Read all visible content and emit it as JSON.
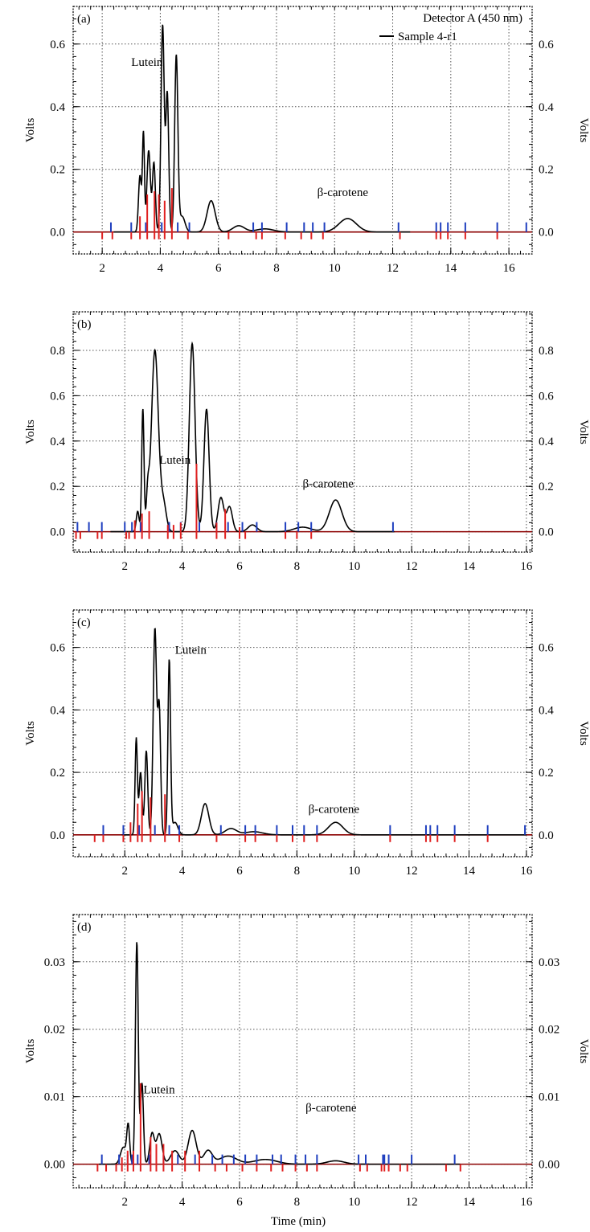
{
  "legend": {
    "detector_label": "Detector A (450 nm)",
    "series_label": "Sample 4-r1"
  },
  "x_axis_title": "Time (min)",
  "colors": {
    "trace": "#000000",
    "baseline": "#8b0000",
    "start_marks": "#1f3fbf",
    "end_marks": "#e02020",
    "grid": "#555555"
  },
  "chart_data": [
    {
      "type": "line",
      "panel": "(a)",
      "xlim": [
        1,
        16.8
      ],
      "ylim": [
        -0.07,
        0.72
      ],
      "x_ticks": [
        2,
        4,
        6,
        8,
        10,
        12,
        14,
        16
      ],
      "x_tick_labels": [
        "2",
        "4",
        "6",
        "8",
        "10",
        "12",
        "14",
        "16"
      ],
      "y_ticks": [
        0.0,
        0.2,
        0.4,
        0.6
      ],
      "y_tick_labels": [
        "0.0",
        "0.2",
        "0.4",
        "0.6"
      ],
      "ylabel_left": "Volts",
      "ylabel_right": "Volts",
      "grid": true,
      "legend_position": "top-right",
      "annotations": [
        {
          "text": "Lutein",
          "x": 3.0,
          "y": 0.53
        },
        {
          "text": "β-carotene",
          "x": 9.4,
          "y": 0.115
        }
      ],
      "trace_range": [
        2.4,
        12.6
      ],
      "peaks": [
        {
          "t": 3.3,
          "h": 0.18,
          "w": 0.05
        },
        {
          "t": 3.42,
          "h": 0.31,
          "w": 0.035
        },
        {
          "t": 3.6,
          "h": 0.26,
          "w": 0.06
        },
        {
          "t": 3.78,
          "h": 0.22,
          "w": 0.05
        },
        {
          "t": 4.08,
          "h": 0.66,
          "w": 0.055
        },
        {
          "t": 4.24,
          "h": 0.44,
          "w": 0.05
        },
        {
          "t": 4.55,
          "h": 0.56,
          "w": 0.055
        },
        {
          "t": 4.75,
          "h": 0.05,
          "w": 0.1
        },
        {
          "t": 5.75,
          "h": 0.1,
          "w": 0.14
        },
        {
          "t": 6.7,
          "h": 0.02,
          "w": 0.2
        },
        {
          "t": 7.6,
          "h": 0.01,
          "w": 0.3
        },
        {
          "t": 10.45,
          "h": 0.043,
          "w": 0.3
        }
      ],
      "marks_start": [
        2.3,
        3.0,
        3.5,
        4.05,
        4.6,
        5.0,
        7.2,
        7.5,
        8.35,
        8.95,
        9.25,
        9.65,
        12.2,
        13.5,
        13.65,
        13.9,
        14.5,
        15.6,
        16.6
      ],
      "marks_end": [
        2.0,
        2.35,
        3.0,
        3.3,
        3.55,
        3.8,
        3.95,
        4.15,
        4.4,
        4.95,
        6.35,
        7.3,
        7.5,
        8.3,
        8.85,
        9.2,
        9.6,
        12.25,
        13.5,
        13.65,
        13.9,
        14.5,
        15.6
      ],
      "end_heights": [
        0,
        0,
        0,
        0.05,
        0.12,
        0.13,
        0.12,
        0.1,
        0.14,
        0,
        0,
        0,
        0,
        0,
        0,
        0,
        0,
        0,
        0,
        0,
        0,
        0,
        0
      ]
    },
    {
      "type": "line",
      "panel": "(b)",
      "xlim": [
        0.2,
        16.2
      ],
      "ylim": [
        -0.09,
        0.97
      ],
      "x_ticks": [
        2,
        4,
        6,
        8,
        10,
        12,
        14,
        16
      ],
      "x_tick_labels": [
        "2",
        "4",
        "6",
        "8",
        "10",
        "12",
        "14",
        "16"
      ],
      "y_ticks": [
        0.0,
        0.2,
        0.4,
        0.6,
        0.8
      ],
      "y_tick_labels": [
        "0.0",
        "0.2",
        "0.4",
        "0.6",
        "0.8"
      ],
      "ylabel_left": "Volts",
      "ylabel_right": "Volts",
      "grid": true,
      "annotations": [
        {
          "text": "Lutein",
          "x": 3.2,
          "y": 0.3
        },
        {
          "text": "β-carotene",
          "x": 8.2,
          "y": 0.195
        }
      ],
      "trace_range": [
        1.5,
        11.4
      ],
      "peaks": [
        {
          "t": 2.45,
          "h": 0.09,
          "w": 0.05
        },
        {
          "t": 2.63,
          "h": 0.54,
          "w": 0.04
        },
        {
          "t": 2.8,
          "h": 0.15,
          "w": 0.05
        },
        {
          "t": 3.05,
          "h": 0.8,
          "w": 0.12
        },
        {
          "t": 3.35,
          "h": 0.12,
          "w": 0.1
        },
        {
          "t": 4.35,
          "h": 0.83,
          "w": 0.1
        },
        {
          "t": 4.85,
          "h": 0.54,
          "w": 0.09
        },
        {
          "t": 5.35,
          "h": 0.15,
          "w": 0.1
        },
        {
          "t": 5.65,
          "h": 0.11,
          "w": 0.1
        },
        {
          "t": 6.45,
          "h": 0.03,
          "w": 0.15
        },
        {
          "t": 8.2,
          "h": 0.02,
          "w": 0.3
        },
        {
          "t": 9.35,
          "h": 0.14,
          "w": 0.22
        }
      ],
      "marks_start": [
        0.35,
        0.75,
        1.2,
        2.0,
        2.25,
        2.55,
        3.55,
        3.95,
        4.6,
        5.2,
        5.6,
        6.1,
        6.6,
        7.6,
        8.05,
        8.5,
        11.35
      ],
      "marks_end": [
        0.3,
        0.45,
        1.05,
        1.2,
        2.05,
        2.15,
        2.35,
        2.6,
        2.85,
        3.5,
        3.7,
        3.95,
        4.5,
        5.2,
        5.5,
        6.0,
        6.2,
        7.6,
        8.0,
        8.5
      ],
      "end_heights": [
        0,
        0,
        0,
        0,
        0,
        0,
        0.05,
        0.08,
        0.09,
        0.03,
        0.03,
        0.04,
        0.3,
        0.04,
        0.1,
        0.02,
        0,
        0,
        0,
        0
      ]
    },
    {
      "type": "line",
      "panel": "(c)",
      "xlim": [
        0.2,
        16.2
      ],
      "ylim": [
        -0.07,
        0.72
      ],
      "x_ticks": [
        2,
        4,
        6,
        8,
        10,
        12,
        14,
        16
      ],
      "x_tick_labels": [
        "2",
        "4",
        "6",
        "8",
        "10",
        "12",
        "14",
        "16"
      ],
      "y_ticks": [
        0.0,
        0.2,
        0.4,
        0.6
      ],
      "y_tick_labels": [
        "0.0",
        "0.2",
        "0.4",
        "0.6"
      ],
      "ylabel_left": "Volts",
      "ylabel_right": "Volts",
      "grid": true,
      "annotations": [
        {
          "text": "Lutein",
          "x": 3.75,
          "y": 0.58
        },
        {
          "text": "β-carotene",
          "x": 8.4,
          "y": 0.07
        }
      ],
      "trace_range": [
        1.9,
        16.0
      ],
      "peaks": [
        {
          "t": 2.4,
          "h": 0.31,
          "w": 0.04
        },
        {
          "t": 2.55,
          "h": 0.2,
          "w": 0.05
        },
        {
          "t": 2.75,
          "h": 0.27,
          "w": 0.05
        },
        {
          "t": 3.05,
          "h": 0.66,
          "w": 0.06
        },
        {
          "t": 3.2,
          "h": 0.4,
          "w": 0.05
        },
        {
          "t": 3.55,
          "h": 0.56,
          "w": 0.045
        },
        {
          "t": 3.75,
          "h": 0.04,
          "w": 0.1
        },
        {
          "t": 4.8,
          "h": 0.1,
          "w": 0.13
        },
        {
          "t": 5.7,
          "h": 0.02,
          "w": 0.2
        },
        {
          "t": 6.5,
          "h": 0.01,
          "w": 0.3
        },
        {
          "t": 9.35,
          "h": 0.04,
          "w": 0.25
        }
      ],
      "marks_start": [
        1.25,
        1.95,
        2.5,
        3.05,
        3.55,
        3.9,
        5.35,
        6.2,
        6.55,
        7.3,
        7.85,
        8.25,
        8.7,
        11.25,
        12.5,
        12.65,
        12.9,
        13.5,
        14.65,
        15.95
      ],
      "marks_end": [
        0.95,
        1.25,
        1.95,
        2.2,
        2.45,
        2.6,
        2.9,
        3.4,
        3.9,
        5.2,
        6.2,
        6.55,
        7.3,
        7.85,
        8.25,
        8.7,
        11.25,
        12.5,
        12.65,
        12.9,
        13.5,
        14.65
      ],
      "end_heights": [
        0,
        0,
        0,
        0.04,
        0.1,
        0.14,
        0.12,
        0.13,
        0,
        0,
        0,
        0,
        0,
        0,
        0,
        0,
        0,
        0,
        0,
        0,
        0,
        0
      ]
    },
    {
      "type": "line",
      "panel": "(d)",
      "xlim": [
        0.2,
        16.2
      ],
      "ylim": [
        -0.0035,
        0.037
      ],
      "x_ticks": [
        2,
        4,
        6,
        8,
        10,
        12,
        14,
        16
      ],
      "x_tick_labels": [
        "2",
        "4",
        "6",
        "8",
        "10",
        "12",
        "14",
        "16"
      ],
      "y_ticks": [
        0.0,
        0.01,
        0.02,
        0.03
      ],
      "y_tick_labels": [
        "0.00",
        "0.01",
        "0.02",
        "0.03"
      ],
      "ylabel_left": "Volts",
      "ylabel_right": "Volts",
      "grid": true,
      "annotations": [
        {
          "text": "Lutein",
          "x": 2.65,
          "y": 0.0105
        },
        {
          "text": "β-carotene",
          "x": 8.3,
          "y": 0.0078
        }
      ],
      "trace_range": [
        1.1,
        13.7
      ],
      "peaks": [
        {
          "t": 1.95,
          "h": 0.0025,
          "w": 0.1
        },
        {
          "t": 2.12,
          "h": 0.0055,
          "w": 0.05
        },
        {
          "t": 2.42,
          "h": 0.033,
          "w": 0.05
        },
        {
          "t": 2.6,
          "h": 0.012,
          "w": 0.05
        },
        {
          "t": 2.95,
          "h": 0.0045,
          "w": 0.08
        },
        {
          "t": 3.2,
          "h": 0.0045,
          "w": 0.1
        },
        {
          "t": 3.75,
          "h": 0.002,
          "w": 0.15
        },
        {
          "t": 4.35,
          "h": 0.005,
          "w": 0.14
        },
        {
          "t": 4.9,
          "h": 0.002,
          "w": 0.15
        },
        {
          "t": 5.6,
          "h": 0.0012,
          "w": 0.3
        },
        {
          "t": 6.9,
          "h": 0.0007,
          "w": 0.4
        },
        {
          "t": 9.35,
          "h": 0.0005,
          "w": 0.3
        }
      ],
      "marks_start": [
        1.2,
        1.8,
        2.1,
        2.25,
        2.45,
        2.85,
        3.35,
        3.85,
        4.45,
        5.05,
        5.4,
        5.8,
        6.2,
        6.6,
        7.15,
        7.45,
        7.95,
        8.3,
        8.7,
        10.15,
        10.4,
        11.0,
        11.05,
        11.2,
        12.0,
        13.5
      ],
      "marks_end": [
        1.05,
        1.35,
        1.7,
        1.9,
        2.1,
        2.3,
        2.55,
        2.9,
        3.1,
        3.35,
        3.65,
        4.1,
        4.6,
        5.15,
        5.55,
        6.1,
        6.6,
        7.1,
        7.5,
        7.95,
        8.35,
        8.7,
        10.2,
        10.45,
        10.95,
        11.05,
        11.2,
        11.6,
        11.85,
        13.2,
        13.7
      ],
      "end_heights": [
        0,
        0,
        0,
        0.001,
        0.002,
        0.002,
        0.012,
        0.004,
        0.003,
        0.003,
        0.002,
        0.002,
        0.002,
        0,
        0,
        0,
        0,
        0,
        0,
        0,
        0,
        0,
        0,
        0,
        0,
        0,
        0,
        0,
        0,
        0,
        0
      ]
    }
  ]
}
